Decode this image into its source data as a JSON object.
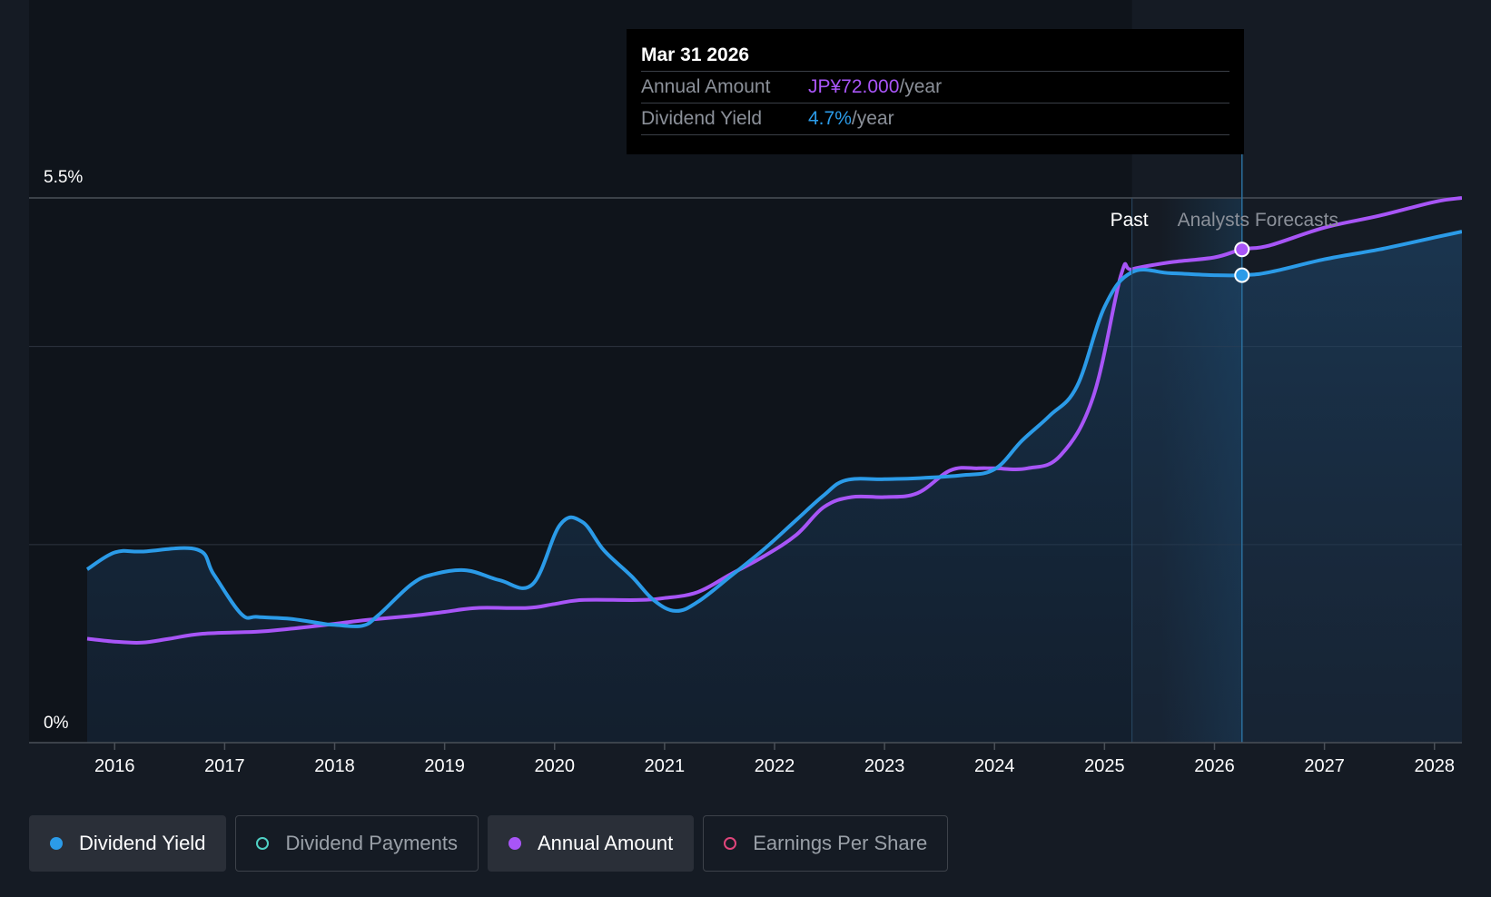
{
  "tooltip": {
    "date": "Mar 31 2026",
    "annual_label": "Annual Amount",
    "annual_value": "JP¥72.000",
    "annual_unit": "/year",
    "yield_label": "Dividend Yield",
    "yield_value": "4.7%",
    "yield_unit": "/year"
  },
  "legend": [
    {
      "label": "Dividend Yield",
      "color": "#2b9be8",
      "active": true,
      "filled": true
    },
    {
      "label": "Dividend Payments",
      "color": "#4fd1c5",
      "active": false,
      "filled": false
    },
    {
      "label": "Annual Amount",
      "color": "#a855f7",
      "active": true,
      "filled": true
    },
    {
      "label": "Earnings Per Share",
      "color": "#e0457b",
      "active": false,
      "filled": false
    }
  ],
  "colors": {
    "background": "#151b24",
    "yield": "#2b9be8",
    "annual": "#a855f7",
    "grid": "#2e3540",
    "axis_text": "#ffffff",
    "muted_text": "#8b9099"
  },
  "chart_data": {
    "type": "line",
    "y_tick_labels": [
      "5.5%",
      "0%"
    ],
    "ylim": [
      0,
      5.5
    ],
    "xlim": [
      2015.75,
      2028.25
    ],
    "x_ticks": [
      "2016",
      "2017",
      "2018",
      "2019",
      "2020",
      "2021",
      "2022",
      "2023",
      "2024",
      "2025",
      "2026",
      "2027",
      "2028"
    ],
    "past_label": "Past",
    "forecast_label": "Analysts Forecasts",
    "past_end": 2025.25,
    "highlight_x": 2026.25,
    "series": [
      {
        "name": "Dividend Yield",
        "color": "#2b9be8",
        "x": [
          2015.5,
          2015.75,
          2016.0,
          2016.25,
          2016.75,
          2016.9,
          2017.15,
          2017.3,
          2017.6,
          2017.9,
          2018.0,
          2018.25,
          2018.4,
          2018.7,
          2018.9,
          2019.2,
          2019.5,
          2019.8,
          2020.05,
          2020.25,
          2020.45,
          2020.7,
          2020.9,
          2021.1,
          2021.3,
          2021.6,
          2021.9,
          2022.2,
          2022.45,
          2022.65,
          2023.0,
          2023.3,
          2023.7,
          2024.0,
          2024.25,
          2024.5,
          2024.75,
          2025.0,
          2025.25,
          2025.6,
          2026.0,
          2026.25,
          2026.5,
          2027.0,
          2027.5,
          2028.0,
          2028.25
        ],
        "y": [
          1.45,
          1.75,
          1.92,
          1.93,
          1.95,
          1.7,
          1.3,
          1.27,
          1.25,
          1.2,
          1.19,
          1.18,
          1.29,
          1.6,
          1.7,
          1.74,
          1.64,
          1.6,
          2.2,
          2.23,
          1.94,
          1.68,
          1.44,
          1.33,
          1.42,
          1.68,
          1.95,
          2.25,
          2.5,
          2.65,
          2.66,
          2.67,
          2.7,
          2.76,
          3.05,
          3.3,
          3.6,
          4.4,
          4.75,
          4.74,
          4.72,
          4.72,
          4.75,
          4.88,
          4.98,
          5.1,
          5.16
        ]
      },
      {
        "name": "Annual Amount",
        "color": "#a855f7",
        "x": [
          2015.5,
          2015.75,
          2016.0,
          2016.25,
          2016.5,
          2016.8,
          2017.3,
          2017.6,
          2018.0,
          2018.3,
          2018.7,
          2019.0,
          2019.3,
          2019.75,
          2020.0,
          2020.25,
          2020.75,
          2021.0,
          2021.3,
          2021.6,
          2021.9,
          2022.2,
          2022.45,
          2022.7,
          2023.0,
          2023.3,
          2023.6,
          2023.85,
          2024.0,
          2024.3,
          2024.6,
          2024.9,
          2025.15,
          2025.25,
          2025.6,
          2026.0,
          2026.25,
          2026.5,
          2027.0,
          2027.5,
          2028.0,
          2028.25
        ],
        "y": [
          1.1,
          1.05,
          1.02,
          1.01,
          1.05,
          1.1,
          1.12,
          1.15,
          1.2,
          1.24,
          1.28,
          1.32,
          1.36,
          1.36,
          1.4,
          1.44,
          1.44,
          1.46,
          1.52,
          1.7,
          1.88,
          2.1,
          2.38,
          2.48,
          2.48,
          2.52,
          2.75,
          2.77,
          2.77,
          2.77,
          2.9,
          3.5,
          4.72,
          4.78,
          4.85,
          4.9,
          4.98,
          5.02,
          5.2,
          5.32,
          5.46,
          5.5
        ]
      }
    ]
  }
}
